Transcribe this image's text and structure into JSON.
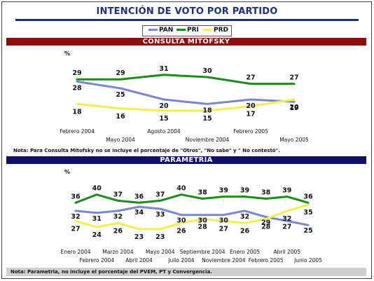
{
  "page_title": "INTENCIÓN DE VOTO POR PARTIDO",
  "legend": [
    {
      "name": "PAN",
      "color": "#7b86cf"
    },
    {
      "name": "PRI",
      "color": "#1e8a1e"
    },
    {
      "name": "PRD",
      "color": "#f0f04a"
    }
  ],
  "sections": {
    "mitofsky": {
      "band_label": "CONSULTA MITOFSKY",
      "note": "Nota: Para Consulta Mitofsky no se incluye el porcentaje de \"Otros\", \"No sabe\" y \" No contestó\"."
    },
    "parametria": {
      "band_label": "PARAMETRÍA",
      "note": "Nota: Parametria, no incluye el porcentaje del PVEM, PT y Convergencia."
    }
  },
  "chart_data": [
    {
      "type": "line",
      "title": "CONSULTA MITOFSKY",
      "ylabel": "%",
      "grid": false,
      "categories": [
        "Febrero 2004",
        "Mayo 2004",
        "Agosto 2004",
        "Noviembre 2004",
        "Febrero 2005",
        "Mayo 2005"
      ],
      "series": [
        {
          "name": "PRI",
          "color": "#1e8a1e",
          "values": [
            29,
            29,
            31,
            30,
            27,
            27
          ]
        },
        {
          "name": "PAN",
          "color": "#7b86cf",
          "values": [
            28,
            25,
            20,
            18,
            20,
            19
          ]
        },
        {
          "name": "PRD",
          "color": "#f0f04a",
          "values": [
            18,
            16,
            15,
            15,
            17,
            20
          ]
        }
      ]
    },
    {
      "type": "line",
      "title": "PARAMETRÍA",
      "ylabel": "%",
      "grid": false,
      "categories": [
        "Enero 2004",
        "Febrero 2004",
        "Marzo 2004",
        "Abril 2004",
        "Mayo 2004",
        "Julio 2004",
        "Septiembre 2004",
        "Noviembre 2004",
        "Enero 2005",
        "Febrero 2005",
        "Abril 2005",
        "Junio 2005"
      ],
      "series": [
        {
          "name": "PRI",
          "color": "#1e8a1e",
          "values": [
            36,
            40,
            37,
            36,
            37,
            40,
            38,
            39,
            39,
            38,
            39,
            36
          ]
        },
        {
          "name": "PAN",
          "color": "#7b86cf",
          "values": [
            32,
            31,
            32,
            34,
            33,
            30,
            30,
            30,
            32,
            29,
            27,
            25
          ]
        },
        {
          "name": "PRD",
          "color": "#f0f04a",
          "values": [
            27,
            24,
            26,
            23,
            23,
            26,
            28,
            27,
            26,
            28,
            32,
            35
          ]
        }
      ]
    }
  ]
}
